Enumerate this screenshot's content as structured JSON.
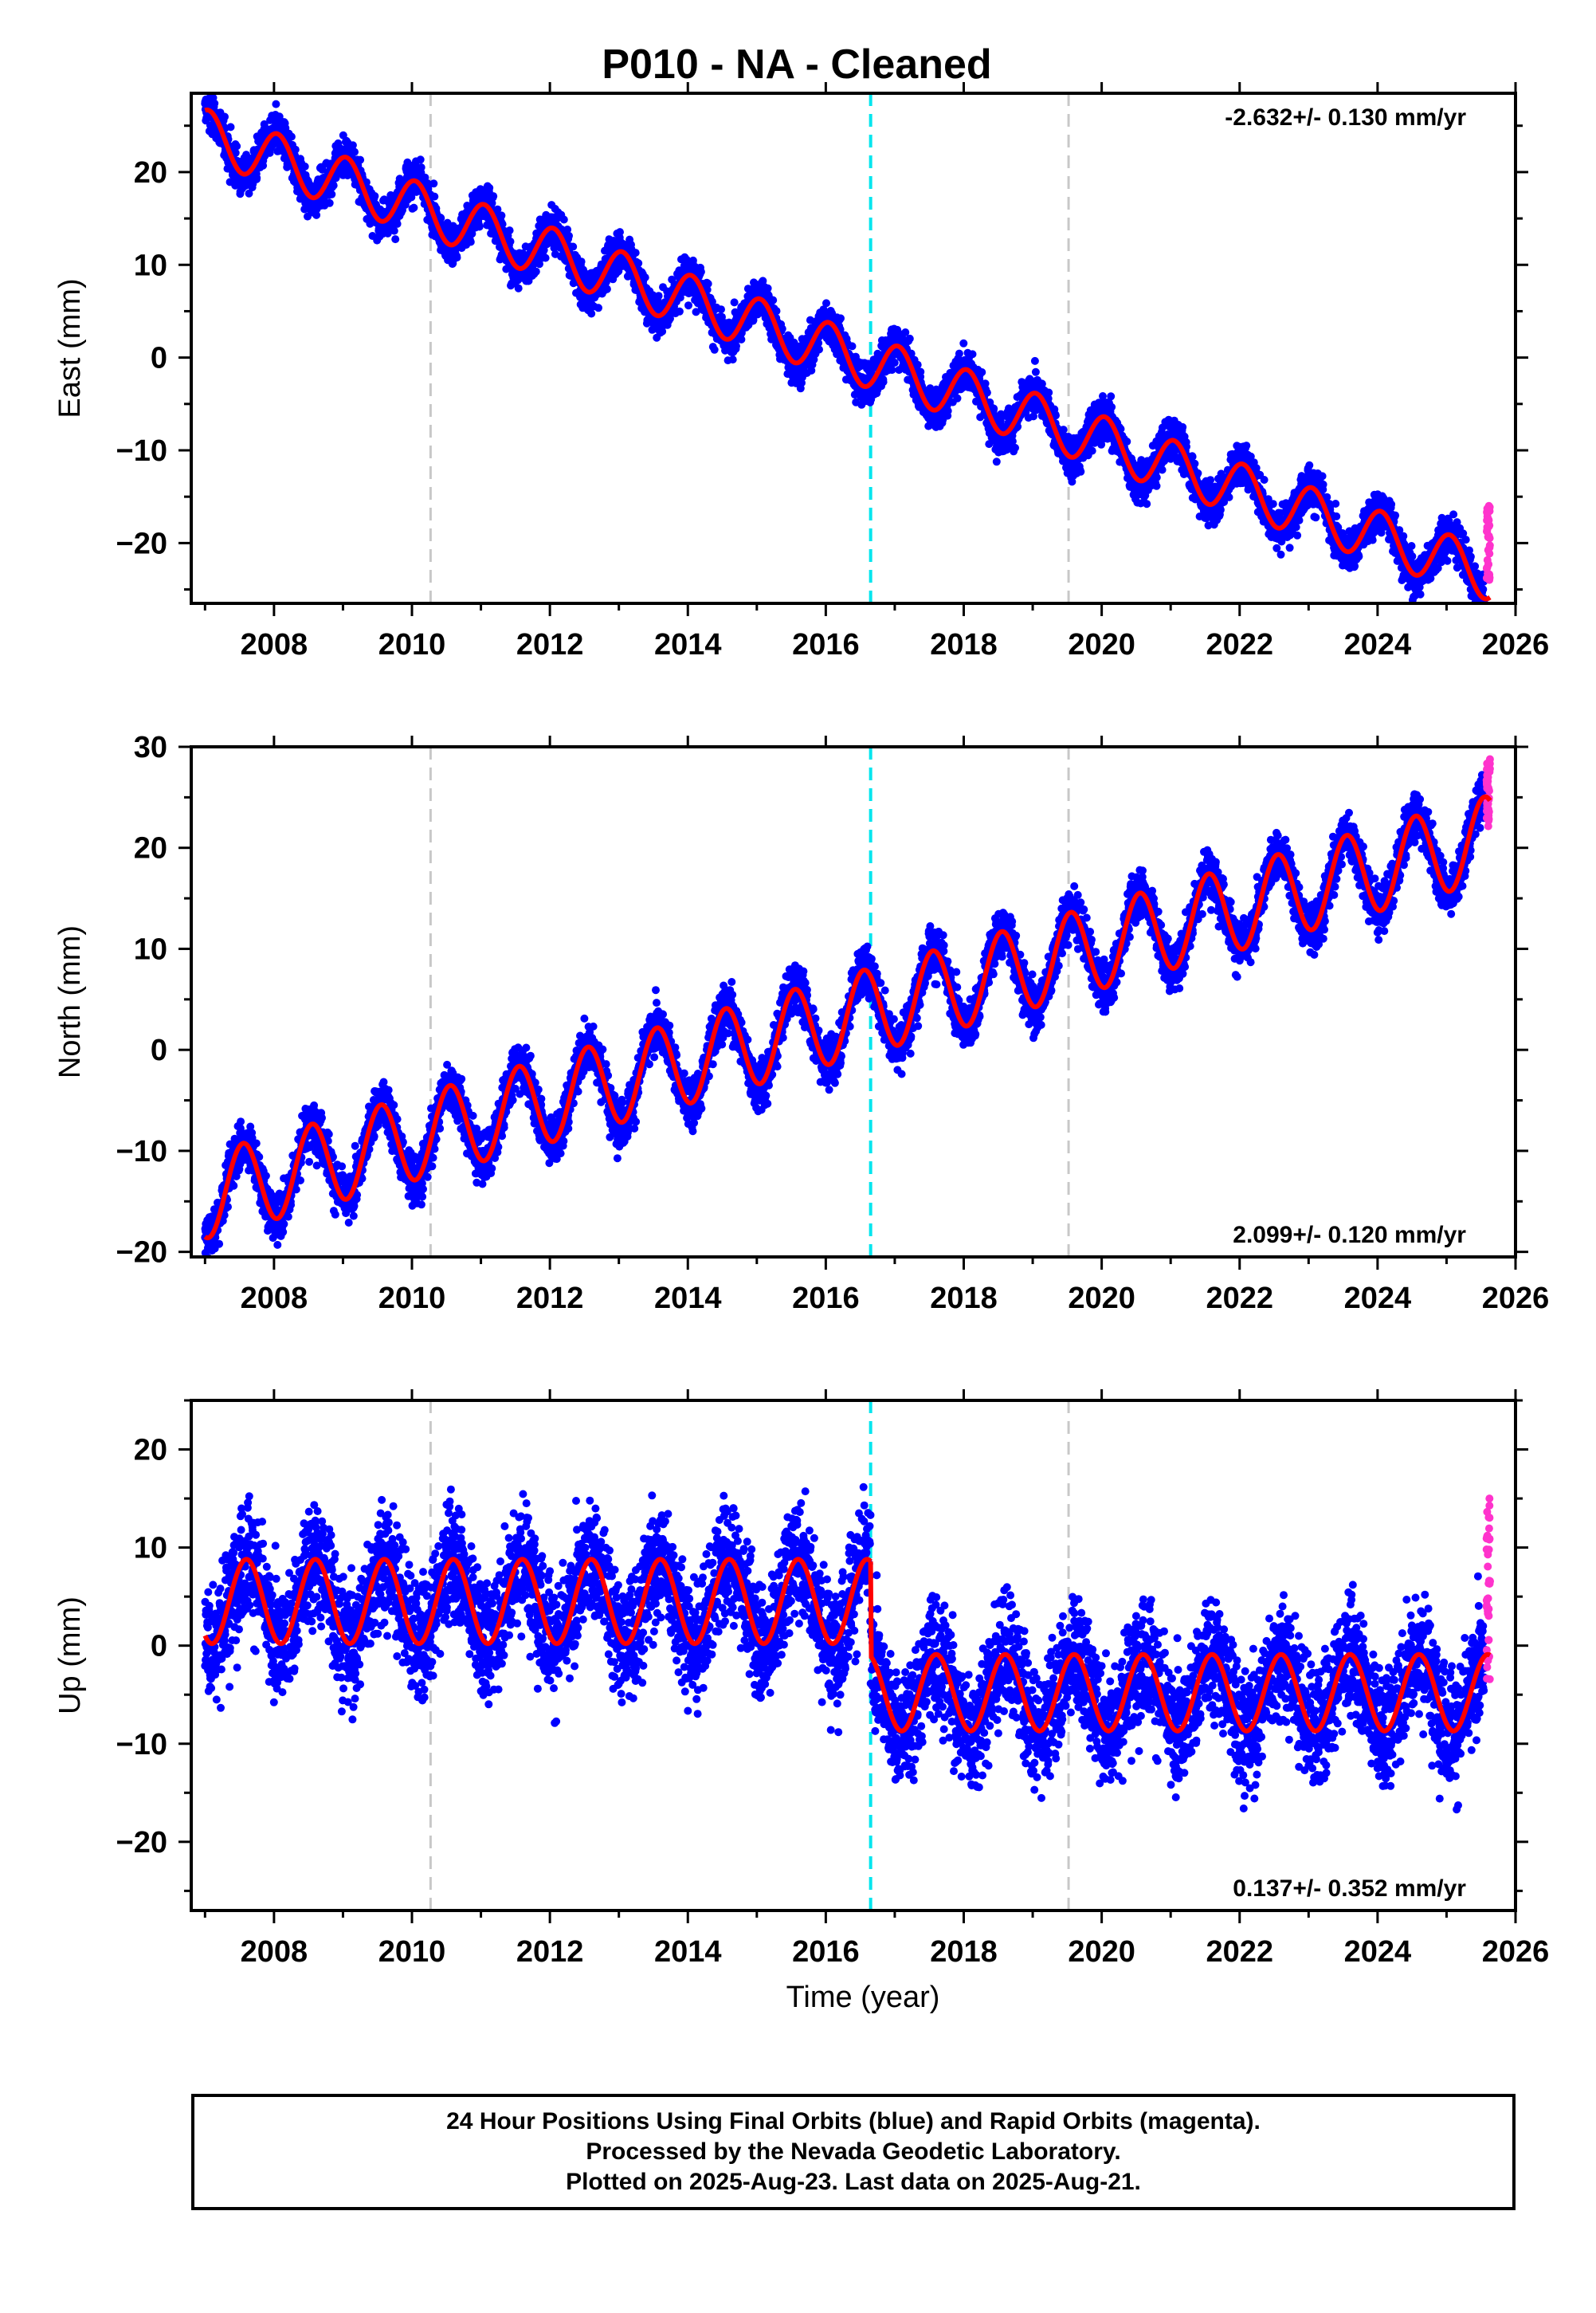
{
  "title": "P010  - NA - Cleaned",
  "x_axis_label": "Time (year)",
  "footer": {
    "line1": "24 Hour Positions Using Final Orbits (blue) and Rapid Orbits (magenta).",
    "line2": "Processed by the Nevada Geodetic Laboratory.",
    "line3": "Plotted on 2025-Aug-23. Last data on 2025-Aug-21."
  },
  "colors": {
    "final_points": "#0000ff",
    "rapid_points": "#ff33cc",
    "model_line": "#ff0000",
    "antenna_change": "#00e5ee",
    "other_event": "#c8c8c8"
  },
  "chart_data": [
    {
      "type": "scatter",
      "panel": "east",
      "ylabel": "East (mm)",
      "rate_text": "-2.632+/- 0.130 mm/yr",
      "rate_position": "top-right",
      "xlim": [
        2006.8,
        2026.0
      ],
      "ylim": [
        -26.5,
        28.5
      ],
      "x_ticks": [
        2008,
        2010,
        2012,
        2014,
        2016,
        2018,
        2020,
        2022,
        2024,
        2026
      ],
      "y_ticks": [
        -20,
        -10,
        0,
        10,
        20
      ],
      "events": [
        {
          "x": 2010.27,
          "kind": "other"
        },
        {
          "x": 2016.65,
          "kind": "antenna"
        },
        {
          "x": 2019.52,
          "kind": "other"
        }
      ],
      "trend": {
        "start_year": 2007.0,
        "end_year": 2025.63,
        "model": [
          [
            2007.0,
            24.0
          ],
          [
            2025.63,
            -23.4
          ]
        ],
        "seasonal_amplitude": 2.8
      },
      "scatter_sd": 1.1,
      "rapid_range": [
        -24,
        -16
      ]
    },
    {
      "type": "scatter",
      "panel": "north",
      "ylabel": "North (mm)",
      "rate_text": "2.099+/- 0.120 mm/yr",
      "rate_position": "bottom-right",
      "xlim": [
        2006.8,
        2026.0
      ],
      "ylim": [
        -20.5,
        30.0
      ],
      "x_ticks": [
        2008,
        2010,
        2012,
        2014,
        2016,
        2018,
        2020,
        2022,
        2024,
        2026
      ],
      "y_ticks": [
        -20,
        -10,
        0,
        10,
        20,
        30
      ],
      "events": [
        {
          "x": 2010.27,
          "kind": "other"
        },
        {
          "x": 2016.65,
          "kind": "antenna"
        },
        {
          "x": 2019.52,
          "kind": "other"
        }
      ],
      "trend": {
        "start_year": 2007.0,
        "end_year": 2025.63,
        "model": [
          [
            2007.0,
            -14.5
          ],
          [
            2025.63,
            21.0
          ]
        ],
        "seasonal_amplitude": 4.2
      },
      "scatter_sd": 1.2,
      "rapid_range": [
        22,
        29
      ]
    },
    {
      "type": "scatter",
      "panel": "up",
      "ylabel": "Up (mm)",
      "rate_text": "0.137+/- 0.352 mm/yr",
      "rate_position": "bottom-right",
      "xlim": [
        2006.8,
        2026.0
      ],
      "ylim": [
        -27,
        25
      ],
      "x_ticks": [
        2008,
        2010,
        2012,
        2014,
        2016,
        2018,
        2020,
        2022,
        2024,
        2026
      ],
      "y_ticks": [
        -20,
        -10,
        0,
        10,
        20
      ],
      "events": [
        {
          "x": 2010.27,
          "kind": "other"
        },
        {
          "x": 2016.65,
          "kind": "antenna"
        },
        {
          "x": 2019.52,
          "kind": "other"
        }
      ],
      "segments": [
        {
          "start_year": 2007.0,
          "end_year": 2016.65,
          "offset": 4.5,
          "seasonal_amplitude": 4.3
        },
        {
          "start_year": 2016.65,
          "end_year": 2025.63,
          "offset": -4.8,
          "seasonal_amplitude": 3.9
        }
      ],
      "scatter_sd": 3.0,
      "rapid_range": [
        -4,
        15.5
      ]
    }
  ]
}
